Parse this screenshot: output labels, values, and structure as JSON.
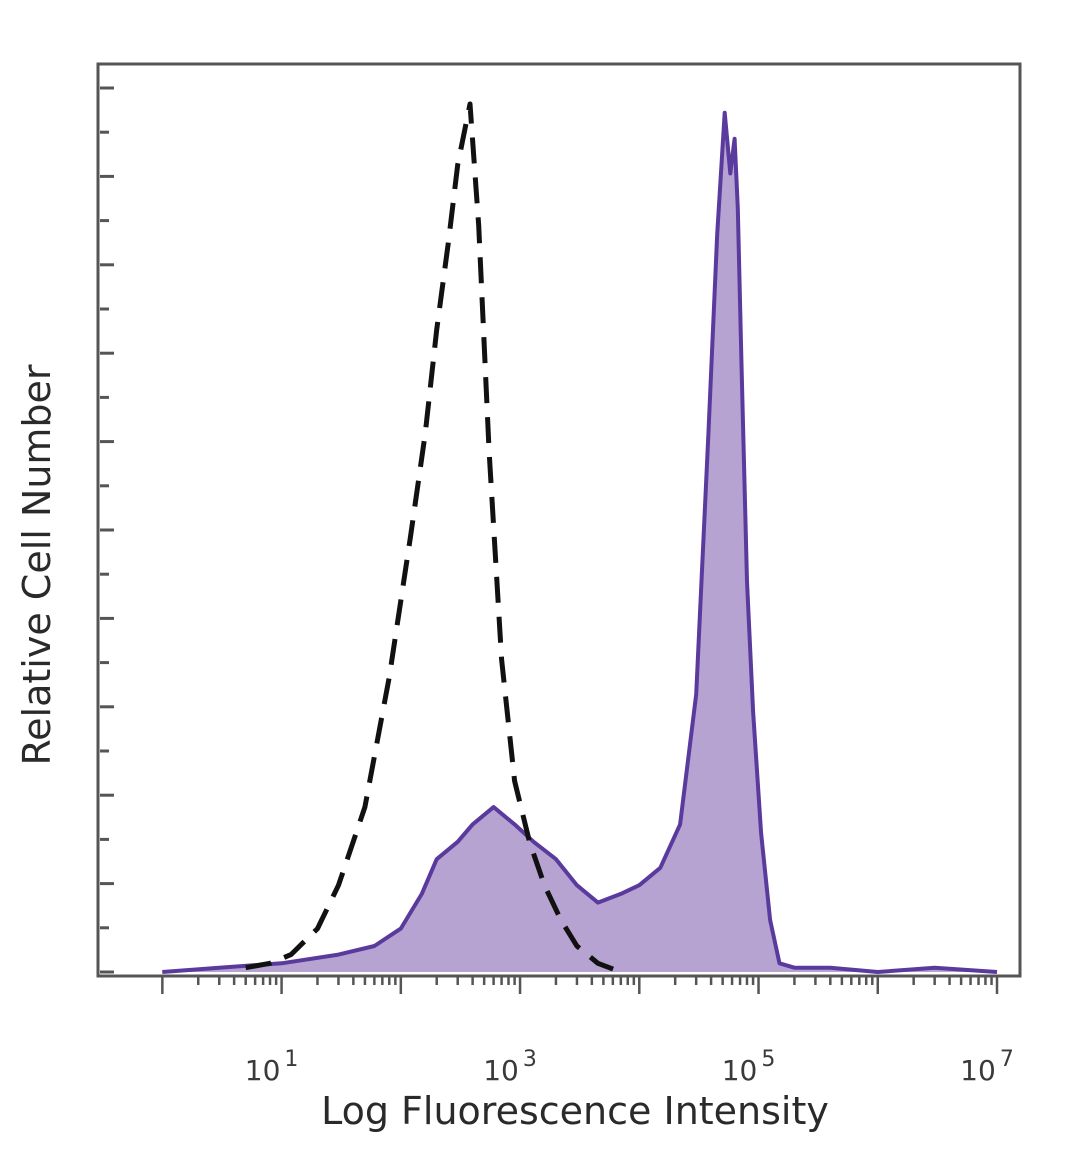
{
  "chart_data": {
    "type": "area",
    "title": "",
    "xlabel": "Log Fluorescence Intensity",
    "ylabel": "Relative Cell Number",
    "xscale": "log",
    "xlim": [
      0.3,
      15000000
    ],
    "ylim": [
      0,
      100
    ],
    "grid": false,
    "x_tick_labels": [
      {
        "base": "10",
        "exp": "1",
        "value": 10
      },
      {
        "base": "10",
        "exp": "3",
        "value": 1000
      },
      {
        "base": "10",
        "exp": "5",
        "value": 100000
      },
      {
        "base": "10",
        "exp": "7",
        "value": 10000000
      }
    ],
    "series": [
      {
        "style": "dashed-outline",
        "color": "#111111",
        "x": [
          5,
          8,
          12,
          20,
          30,
          50,
          80,
          120,
          160,
          200,
          250,
          300,
          380,
          450,
          550,
          700,
          900,
          1200,
          1600,
          2200,
          3000,
          4500,
          7000
        ],
        "y": [
          0.5,
          1,
          2,
          5,
          10,
          19,
          34,
          50,
          62,
          74,
          84,
          93,
          100,
          86,
          60,
          36,
          22,
          15,
          10,
          6,
          3,
          1,
          0
        ]
      },
      {
        "style": "filled",
        "color": "#5b3a9e",
        "fill": "#b6a3d1",
        "x": [
          1,
          3,
          10,
          30,
          60,
          100,
          150,
          200,
          300,
          400,
          600,
          900,
          1300,
          2000,
          3000,
          4500,
          7000,
          10000,
          15000,
          22000,
          30000,
          38000,
          45000,
          52000,
          58000,
          63000,
          67000,
          72000,
          80000,
          90000,
          105000,
          125000,
          150000,
          200000,
          400000,
          1000000,
          3000000,
          10000000
        ],
        "y": [
          0,
          0.5,
          1,
          2,
          3,
          5,
          9,
          13,
          15,
          17,
          19,
          17,
          15,
          13,
          10,
          8,
          9,
          10,
          12,
          17,
          32,
          62,
          85,
          99,
          92,
          96,
          88,
          70,
          45,
          30,
          16,
          6,
          1,
          0.5,
          0.5,
          0,
          0.5,
          0
        ]
      }
    ]
  }
}
